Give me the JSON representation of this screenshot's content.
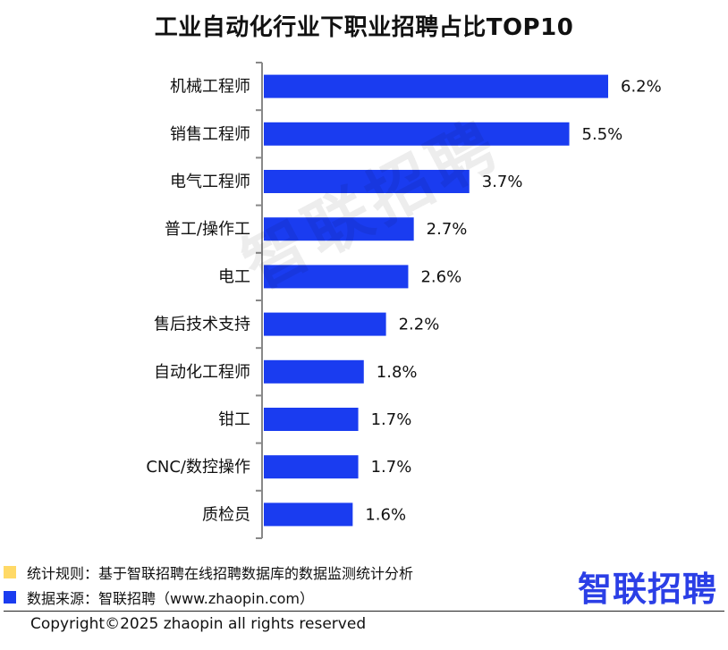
{
  "title": "工业自动化行业下职业招聘占比TOP10",
  "chart_data": {
    "type": "bar",
    "orientation": "horizontal",
    "categories": [
      "机械工程师",
      "销售工程师",
      "电气工程师",
      "普工/操作工",
      "电工",
      "售后技术支持",
      "自动化工程师",
      "钳工",
      "CNC/数控操作",
      "质检员"
    ],
    "values": [
      6.2,
      5.5,
      3.7,
      2.7,
      2.6,
      2.2,
      1.8,
      1.7,
      1.7,
      1.6
    ],
    "value_labels": [
      "6.2%",
      "5.5%",
      "3.7%",
      "2.7%",
      "2.6%",
      "2.2%",
      "1.8%",
      "1.7%",
      "1.7%",
      "1.6%"
    ],
    "xlim": [
      0,
      6.8
    ],
    "bar_color": "#1a3cf0",
    "grid": false
  },
  "watermark": "智联招聘",
  "legend": [
    {
      "label": "统计规则：基于智联招聘在线招聘数据库的数据监测统计分析",
      "color": "#ffd966"
    },
    {
      "label": "数据来源：智联招聘（www.zhaopin.com）",
      "color": "#1a3cf0"
    }
  ],
  "brand": "智联招聘",
  "copyright": "Copyright©2025 zhaopin all rights reserved"
}
